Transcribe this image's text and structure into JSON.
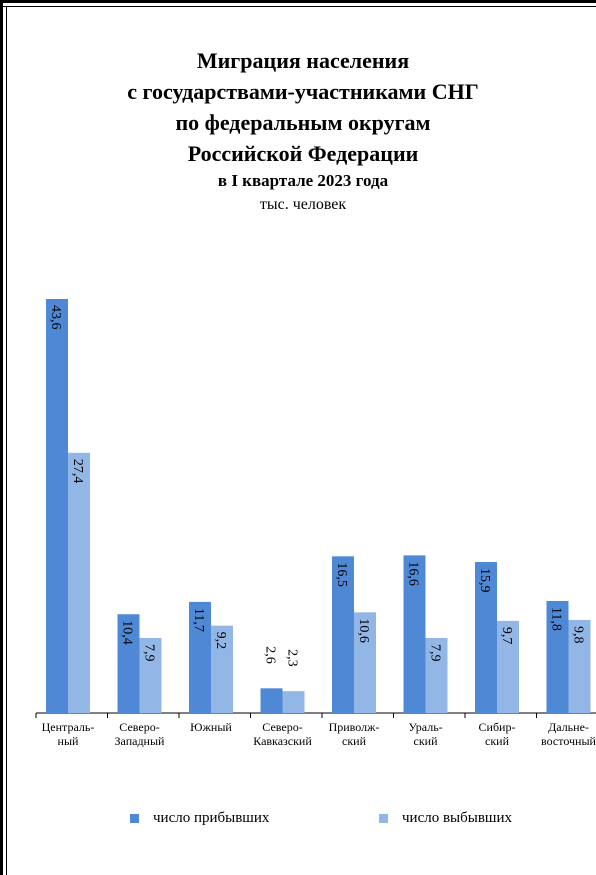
{
  "title_lines": [
    "Миграция  населения",
    "с государствами-участниками  СНГ",
    "по федеральным  округам",
    "Российской  Федерации",
    "в  I квартале 2023 года"
  ],
  "unit": "тыс. человек",
  "colors": {
    "arrived": "#4f89d6",
    "departed": "#92b6e6"
  },
  "legend": [
    {
      "label": "число прибывших",
      "color": "#4f89d6"
    },
    {
      "label": "число выбывших",
      "color": "#92b6e6"
    }
  ],
  "chart_data": {
    "type": "bar",
    "categories": [
      [
        "Централь-",
        "ный"
      ],
      [
        "Северо-",
        "Западный"
      ],
      [
        "Южный"
      ],
      [
        "Северо-",
        "Кавказский"
      ],
      [
        "Приволж-",
        "ский"
      ],
      [
        "Ураль-",
        "ский"
      ],
      [
        "Сибир-",
        "ский"
      ],
      [
        "Дальне-",
        "восточный"
      ]
    ],
    "series": [
      {
        "name": "число прибывших",
        "values": [
          43.6,
          10.4,
          11.7,
          2.6,
          16.5,
          16.6,
          15.9,
          11.8
        ],
        "labels": [
          "43,6",
          "10,4",
          "11,7",
          "2,6",
          "16,5",
          "16,6",
          "15,9",
          "11,8"
        ]
      },
      {
        "name": "число выбывших",
        "values": [
          27.4,
          7.9,
          9.2,
          2.3,
          10.6,
          7.9,
          9.7,
          9.8
        ],
        "labels": [
          "27,4",
          "7,9",
          "9,2",
          "2,3",
          "10,6",
          "7,9",
          "9,7",
          "9,8"
        ]
      }
    ],
    "ylim": [
      0,
      44
    ]
  }
}
